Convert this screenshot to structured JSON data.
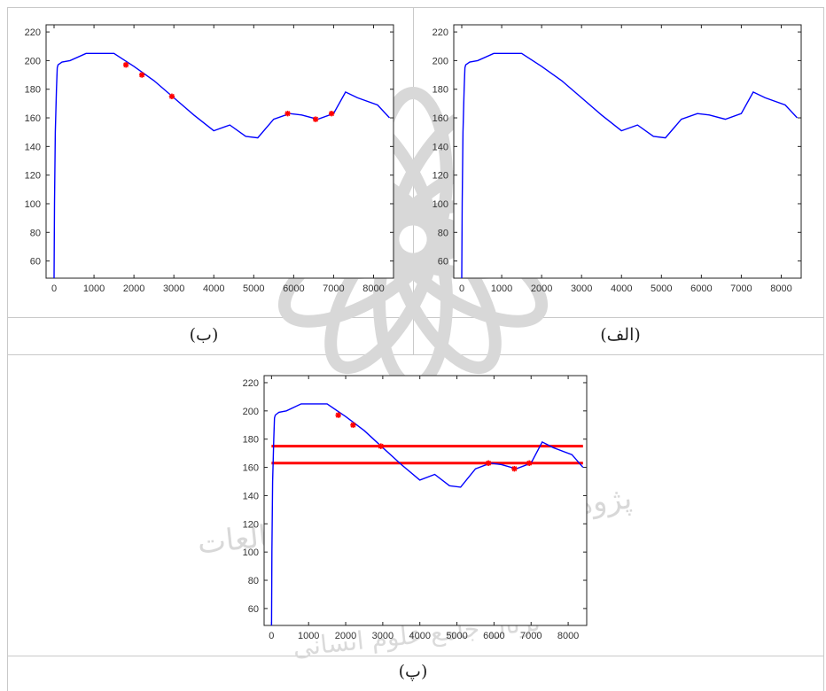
{
  "captions": {
    "top_left": "(ب)",
    "top_right": "(الف)",
    "bottom": "(پ)"
  },
  "watermark_text": "پژوهشگاه علوم انسانی و مطالعات فرهنگی",
  "watermark_text_2": "پرتال جامع علوم انسانی",
  "colors": {
    "line": "#0000ff",
    "markers": "#ff0000",
    "thresholds": "#ff0000",
    "axis": "#222222",
    "watermark": "#d8d8d8"
  },
  "chart_data": [
    {
      "id": "panel-b",
      "type": "line",
      "title": "",
      "xlabel": "",
      "ylabel": "",
      "xlim": [
        -200,
        8500
      ],
      "ylim": [
        48,
        225
      ],
      "xticks": [
        0,
        1000,
        2000,
        3000,
        4000,
        5000,
        6000,
        7000,
        8000
      ],
      "yticks": [
        60,
        80,
        100,
        120,
        140,
        160,
        180,
        200,
        220
      ],
      "grid": false,
      "series": [
        {
          "x": [
            0,
            10,
            30,
            60,
            80,
            100,
            150,
            200,
            400,
            800,
            1500,
            2000,
            2500,
            3000,
            3500,
            4000,
            4400,
            4800,
            5100,
            5500,
            5900,
            6200,
            6600,
            7000,
            7300,
            7600,
            8100,
            8400
          ],
          "y": [
            48,
            100,
            150,
            180,
            195,
            197,
            198,
            199,
            200,
            205,
            205,
            196,
            186,
            174,
            162,
            151,
            155,
            147,
            146,
            159,
            163,
            162,
            159,
            163,
            178,
            174,
            169,
            160
          ]
        }
      ],
      "markers": {
        "x": [
          1800,
          2200,
          2950,
          5850,
          6550,
          6950
        ],
        "y": [
          197,
          190,
          175,
          163,
          159,
          163
        ]
      }
    },
    {
      "id": "panel-alef",
      "type": "line",
      "title": "",
      "xlabel": "",
      "ylabel": "",
      "xlim": [
        -200,
        8500
      ],
      "ylim": [
        48,
        225
      ],
      "xticks": [
        0,
        1000,
        2000,
        3000,
        4000,
        5000,
        6000,
        7000,
        8000
      ],
      "yticks": [
        60,
        80,
        100,
        120,
        140,
        160,
        180,
        200,
        220
      ],
      "grid": false,
      "series": [
        {
          "x": [
            0,
            10,
            30,
            60,
            80,
            100,
            150,
            200,
            400,
            800,
            1500,
            2000,
            2500,
            3000,
            3500,
            4000,
            4400,
            4800,
            5100,
            5500,
            5900,
            6200,
            6600,
            7000,
            7300,
            7600,
            8100,
            8400
          ],
          "y": [
            48,
            100,
            150,
            180,
            195,
            197,
            198,
            199,
            200,
            205,
            205,
            196,
            186,
            174,
            162,
            151,
            155,
            147,
            146,
            159,
            163,
            162,
            159,
            163,
            178,
            174,
            169,
            160
          ]
        }
      ],
      "markers": {
        "x": [],
        "y": []
      }
    },
    {
      "id": "panel-pe",
      "type": "line",
      "title": "",
      "xlabel": "",
      "ylabel": "",
      "xlim": [
        -200,
        8500
      ],
      "ylim": [
        48,
        225
      ],
      "xticks": [
        0,
        1000,
        2000,
        3000,
        4000,
        5000,
        6000,
        7000,
        8000
      ],
      "yticks": [
        60,
        80,
        100,
        120,
        140,
        160,
        180,
        200,
        220
      ],
      "grid": false,
      "series": [
        {
          "x": [
            0,
            10,
            30,
            60,
            80,
            100,
            150,
            200,
            400,
            800,
            1500,
            2000,
            2500,
            3000,
            3500,
            4000,
            4400,
            4800,
            5100,
            5500,
            5900,
            6200,
            6600,
            7000,
            7300,
            7600,
            8100,
            8400
          ],
          "y": [
            48,
            100,
            150,
            180,
            195,
            197,
            198,
            199,
            200,
            205,
            205,
            196,
            186,
            174,
            162,
            151,
            155,
            147,
            146,
            159,
            163,
            162,
            159,
            163,
            178,
            174,
            169,
            160
          ]
        }
      ],
      "markers": {
        "x": [
          1800,
          2200,
          2950,
          5850,
          6550,
          6950
        ],
        "y": [
          197,
          190,
          175,
          163,
          159,
          163
        ]
      },
      "hlines": [
        {
          "y": 175,
          "x_from": 0,
          "x_to": 8400
        },
        {
          "y": 163,
          "x_from": 0,
          "x_to": 8400
        }
      ]
    }
  ]
}
